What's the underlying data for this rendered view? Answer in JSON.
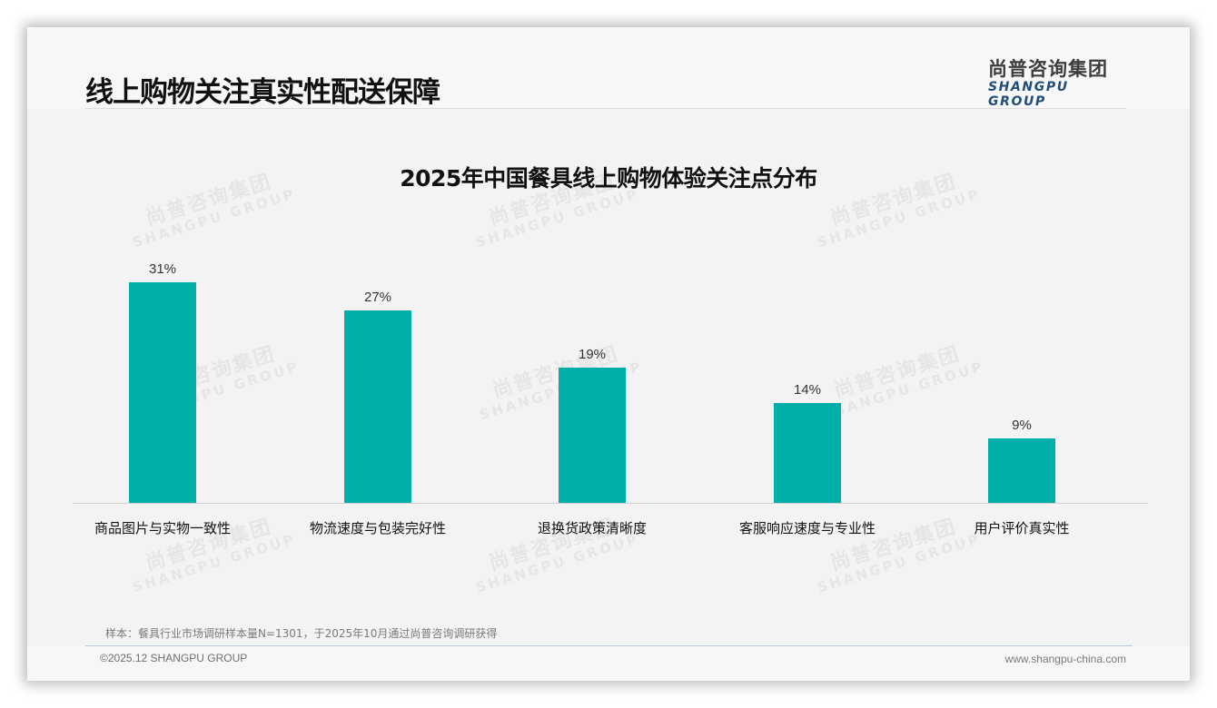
{
  "page": {
    "title": "线上购物关注真实性配送保障",
    "logo": {
      "cn": "尚普咨询集团",
      "en": "SHANGPU GROUP"
    },
    "watermark": {
      "cn": "尚普咨询集团",
      "en": "SHANGPU GROUP"
    },
    "source_note": "样本：餐具行业市场调研样本量N=1301，于2025年10月通过尚普咨询调研获得",
    "footer": {
      "copyright": "©2025.12 SHANGPU GROUP",
      "website": "www.shangpu-china.com"
    },
    "colors": {
      "bar": "#00b0a8",
      "logo_en": "#1f4e79",
      "background": "#f3f3f3"
    }
  },
  "chart_data": {
    "type": "bar",
    "title": "2025年中国餐具线上购物体验关注点分布",
    "categories": [
      "商品图片与实物一致性",
      "物流速度与包装完好性",
      "退换货政策清晰度",
      "客服响应速度与专业性",
      "用户评价真实性"
    ],
    "values": [
      31,
      27,
      19,
      14,
      9
    ],
    "value_labels": [
      "31%",
      "27%",
      "19%",
      "14%",
      "9%"
    ],
    "unit": "%",
    "xlabel": "",
    "ylabel": "",
    "ylim": [
      0,
      35
    ],
    "grid": false,
    "legend": null,
    "data_labels": true
  }
}
